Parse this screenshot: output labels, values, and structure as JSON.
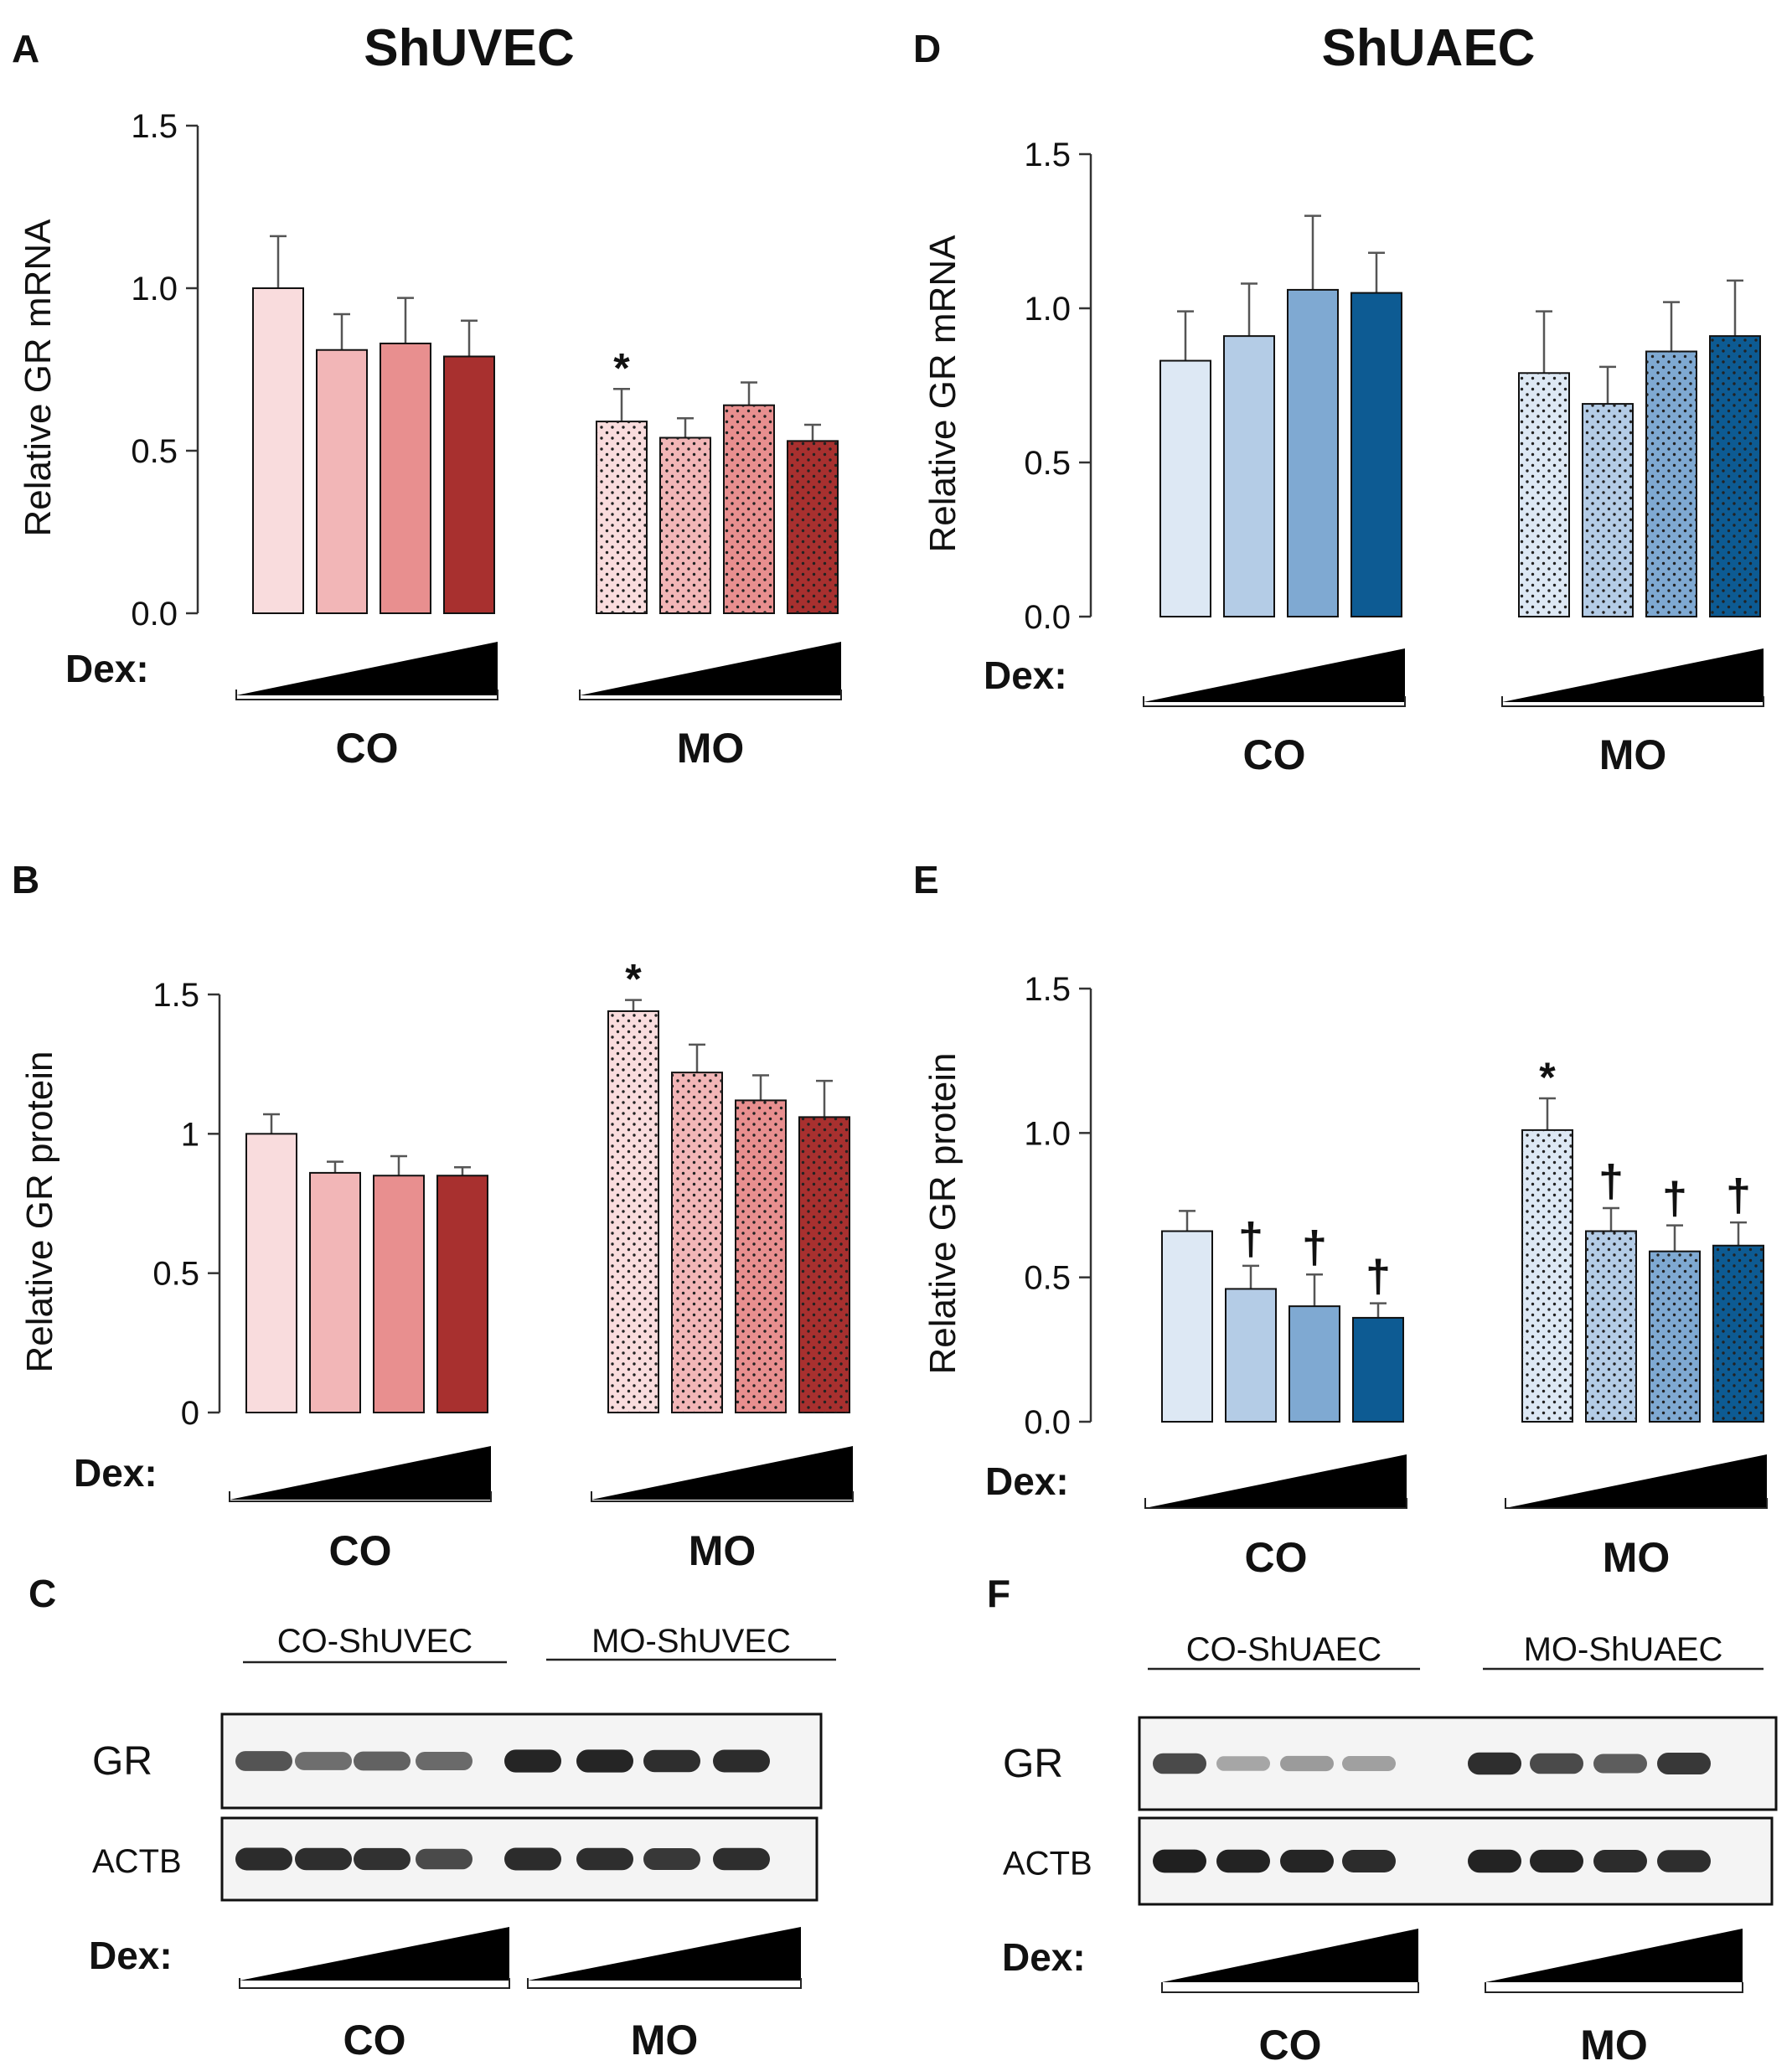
{
  "colors": {
    "red": [
      "#f9dcdd",
      "#f2b6b7",
      "#e88f8f",
      "#a8302f"
    ],
    "blue": [
      "#dde8f4",
      "#b4cce6",
      "#7fa9d2",
      "#0d5b93"
    ],
    "stroke": "#111111",
    "error": "#555555",
    "blot_bg": "#f4f4f4",
    "band": "#1c1c1c"
  },
  "titles": {
    "left": "ShUVEC",
    "right": "ShUAEC"
  },
  "dex_label": "Dex:",
  "chart_data": [
    {
      "panel": "A",
      "type": "bar",
      "ylabel": "Relative GR mRNA",
      "ylim": [
        0,
        1.5
      ],
      "ticks": [
        "0.0",
        "0.5",
        "1.0",
        "1.5"
      ],
      "palette": "red",
      "groups": [
        {
          "name": "CO",
          "values": [
            1.0,
            0.81,
            0.83,
            0.79
          ],
          "errors": [
            0.16,
            0.11,
            0.14,
            0.11
          ],
          "marks": [
            "",
            "",
            "",
            ""
          ]
        },
        {
          "name": "MO",
          "values": [
            0.59,
            0.54,
            0.64,
            0.53
          ],
          "errors": [
            0.1,
            0.06,
            0.07,
            0.05
          ],
          "marks": [
            "*",
            "",
            "",
            ""
          ]
        }
      ]
    },
    {
      "panel": "B",
      "type": "bar",
      "ylabel": "Relative GR protein",
      "ylim": [
        0,
        1.5
      ],
      "ticks": [
        "0",
        "0.5",
        "1",
        "1.5"
      ],
      "palette": "red",
      "groups": [
        {
          "name": "CO",
          "values": [
            1.0,
            0.86,
            0.85,
            0.85
          ],
          "errors": [
            0.07,
            0.04,
            0.07,
            0.03
          ],
          "marks": [
            "",
            "",
            "",
            ""
          ]
        },
        {
          "name": "MO",
          "values": [
            1.44,
            1.22,
            1.12,
            1.06
          ],
          "errors": [
            0.04,
            0.1,
            0.09,
            0.13
          ],
          "marks": [
            "*",
            "",
            "",
            ""
          ]
        }
      ]
    },
    {
      "panel": "D",
      "type": "bar",
      "ylabel": "Relative GR mRNA",
      "ylim": [
        0,
        1.5
      ],
      "ticks": [
        "0.0",
        "0.5",
        "1.0",
        "1.5"
      ],
      "palette": "blue",
      "groups": [
        {
          "name": "CO",
          "values": [
            0.83,
            0.91,
            1.06,
            1.05
          ],
          "errors": [
            0.16,
            0.17,
            0.24,
            0.13
          ],
          "marks": [
            "",
            "",
            "",
            ""
          ]
        },
        {
          "name": "MO",
          "values": [
            0.79,
            0.69,
            0.86,
            0.91
          ],
          "errors": [
            0.2,
            0.12,
            0.16,
            0.18
          ],
          "marks": [
            "",
            "",
            "",
            ""
          ]
        }
      ]
    },
    {
      "panel": "E",
      "type": "bar",
      "ylabel": "Relative GR protein",
      "ylim": [
        0,
        1.5
      ],
      "ticks": [
        "0.0",
        "0.5",
        "1.0",
        "1.5"
      ],
      "palette": "blue",
      "groups": [
        {
          "name": "CO",
          "values": [
            0.66,
            0.46,
            0.4,
            0.36
          ],
          "errors": [
            0.07,
            0.08,
            0.11,
            0.05
          ],
          "marks": [
            "",
            "†",
            "†",
            "†"
          ]
        },
        {
          "name": "MO",
          "values": [
            1.01,
            0.66,
            0.59,
            0.61
          ],
          "errors": [
            0.11,
            0.08,
            0.09,
            0.08
          ],
          "marks": [
            "*",
            "†",
            "†",
            "†"
          ]
        }
      ]
    }
  ],
  "blots": [
    {
      "panel": "C",
      "group_labels": [
        "CO-ShUVEC",
        "MO-ShUVEC"
      ],
      "rows": [
        "GR",
        "ACTB"
      ],
      "gr_intensity": [
        0.7,
        0.55,
        0.62,
        0.58,
        0.95,
        0.95,
        0.9,
        0.92
      ],
      "actb_intensity": [
        0.92,
        0.9,
        0.88,
        0.75,
        0.92,
        0.9,
        0.85,
        0.9
      ],
      "dex_groups": [
        "CO",
        "MO"
      ]
    },
    {
      "panel": "F",
      "group_labels": [
        "CO-ShUAEC",
        "MO-ShUAEC"
      ],
      "rows": [
        "GR",
        "ACTB"
      ],
      "gr_intensity": [
        0.75,
        0.25,
        0.3,
        0.28,
        0.9,
        0.75,
        0.65,
        0.85
      ],
      "actb_intensity": [
        0.98,
        0.96,
        0.95,
        0.92,
        0.97,
        0.95,
        0.92,
        0.9
      ],
      "dex_groups": [
        "CO",
        "MO"
      ]
    }
  ]
}
